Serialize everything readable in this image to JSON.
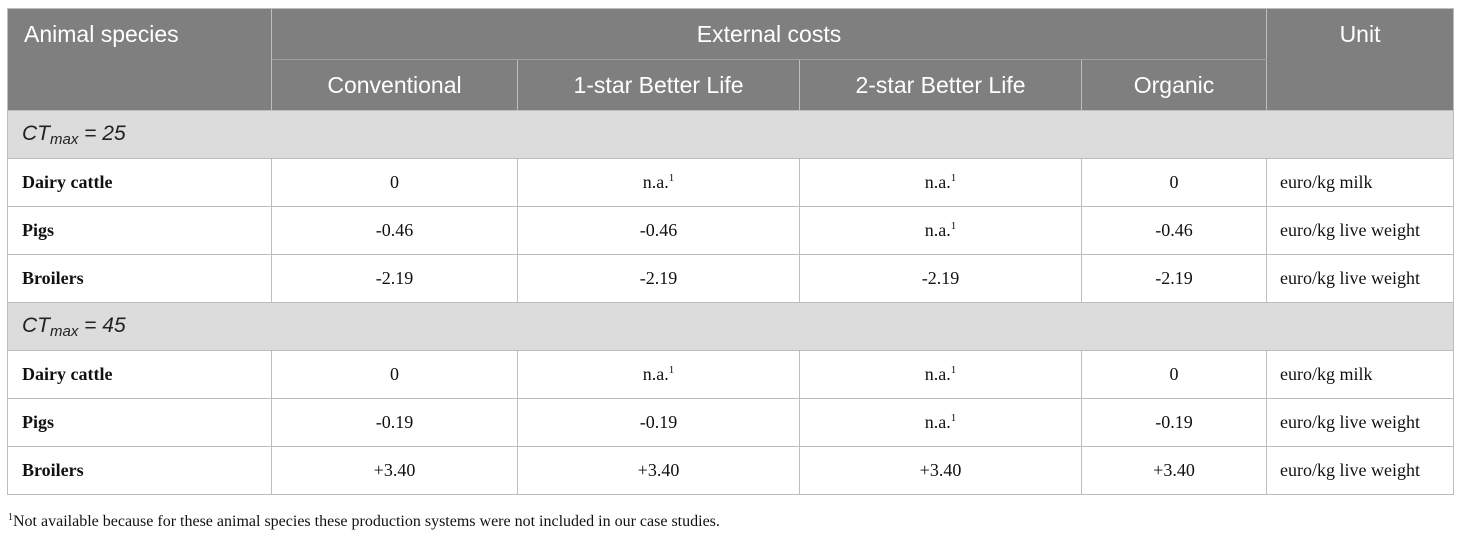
{
  "header": {
    "species": "Animal species",
    "external_costs": "External costs",
    "unit": "Unit",
    "systems": [
      "Conventional",
      "1-star Better Life",
      "2-star Better Life",
      "Organic"
    ]
  },
  "groups": [
    {
      "ct_label": "CT",
      "ct_sub": "max",
      "ct_value": " = 25",
      "rows": [
        {
          "name": "Dairy cattle",
          "values": [
            "0",
            "n.a.",
            "n.a.",
            "0"
          ],
          "notes": [
            "",
            "1",
            "1",
            ""
          ],
          "unit": "euro/kg milk"
        },
        {
          "name": "Pigs",
          "values": [
            "-0.46",
            "-0.46",
            "n.a.",
            "-0.46"
          ],
          "notes": [
            "",
            "",
            "1",
            ""
          ],
          "unit": "euro/kg live weight"
        },
        {
          "name": "Broilers",
          "values": [
            "-2.19",
            "-2.19",
            "-2.19",
            "-2.19"
          ],
          "notes": [
            "",
            "",
            "",
            ""
          ],
          "unit": "euro/kg live weight"
        }
      ]
    },
    {
      "ct_label": "CT",
      "ct_sub": "max",
      "ct_value": " = 45",
      "rows": [
        {
          "name": "Dairy cattle",
          "values": [
            "0",
            "n.a.",
            "n.a.",
            "0"
          ],
          "notes": [
            "",
            "1",
            "1",
            ""
          ],
          "unit": "euro/kg milk"
        },
        {
          "name": "Pigs",
          "values": [
            "-0.19",
            "-0.19",
            "n.a.",
            "-0.19"
          ],
          "notes": [
            "",
            "",
            "1",
            ""
          ],
          "unit": "euro/kg live weight"
        },
        {
          "name": "Broilers",
          "values": [
            "+3.40",
            "+3.40",
            "+3.40",
            "+3.40"
          ],
          "notes": [
            "",
            "",
            "",
            ""
          ],
          "unit": "euro/kg live weight"
        }
      ]
    }
  ],
  "footnote": {
    "mark": "1",
    "text": "Not available because for these animal species these production systems were not included in our case studies."
  }
}
